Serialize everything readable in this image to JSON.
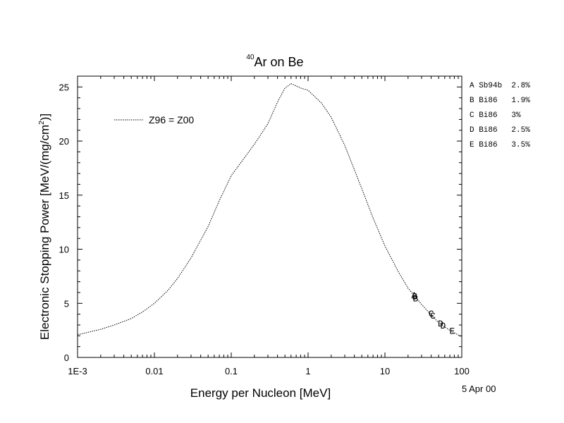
{
  "chart_data": {
    "type": "line",
    "title_superscript": "40",
    "title_main": "Ar on Be",
    "xlabel": "Energy per Nucleon [MeV]",
    "ylabel_prefix": "Electronic Stopping Power [MeV/(mg/cm",
    "ylabel_sup": "2",
    "ylabel_suffix": ")]",
    "xscale": "log",
    "xlim": [
      0.001,
      100
    ],
    "ylim": [
      0,
      26
    ],
    "x_tick_labels": [
      "1E-3",
      "0.01",
      "0.1",
      "1",
      "10",
      "100"
    ],
    "x_tick_values": [
      0.001,
      0.01,
      0.1,
      1,
      10,
      100
    ],
    "y_tick_values": [
      0,
      5,
      10,
      15,
      20,
      25
    ],
    "grid": false,
    "series": [
      {
        "name": "Z96 = Z00",
        "style": "dotted",
        "color": "#000000",
        "x": [
          0.001,
          0.002,
          0.003,
          0.005,
          0.007,
          0.01,
          0.015,
          0.02,
          0.03,
          0.05,
          0.07,
          0.1,
          0.15,
          0.2,
          0.3,
          0.4,
          0.5,
          0.6,
          0.7,
          0.8,
          1.0,
          1.5,
          2,
          3,
          5,
          7,
          10,
          15,
          20,
          30,
          50,
          70,
          100
        ],
        "y": [
          2.1,
          2.6,
          3.0,
          3.6,
          4.2,
          5.0,
          6.2,
          7.3,
          9.2,
          12.1,
          14.5,
          16.8,
          18.5,
          19.7,
          21.6,
          23.6,
          24.9,
          25.3,
          25.1,
          24.9,
          24.7,
          23.5,
          22.2,
          19.6,
          15.6,
          12.9,
          10.3,
          7.9,
          6.4,
          4.9,
          3.2,
          2.5,
          1.9
        ]
      }
    ],
    "markers": [
      {
        "letter": "A",
        "x": 24,
        "y": 5.8
      },
      {
        "letter": "B",
        "x": 25,
        "y": 5.5
      },
      {
        "letter": "B",
        "x": 24.5,
        "y": 5.7
      },
      {
        "letter": "C",
        "x": 40,
        "y": 4.1
      },
      {
        "letter": "C",
        "x": 42,
        "y": 3.9
      },
      {
        "letter": "D",
        "x": 53,
        "y": 3.2
      },
      {
        "letter": "D",
        "x": 57,
        "y": 3.0
      },
      {
        "letter": "E",
        "x": 75,
        "y": 2.5
      }
    ],
    "side_legend": [
      {
        "letter": "A",
        "ref": "Sb94b",
        "err": "2.8%"
      },
      {
        "letter": "B",
        "ref": "Bi86",
        "err": "1.9%"
      },
      {
        "letter": "C",
        "ref": "Bi86",
        "err": "3%"
      },
      {
        "letter": "D",
        "ref": "Bi86",
        "err": "2.5%"
      },
      {
        "letter": "E",
        "ref": "Bi86",
        "err": "3.5%"
      }
    ],
    "date": "5 Apr 00"
  }
}
